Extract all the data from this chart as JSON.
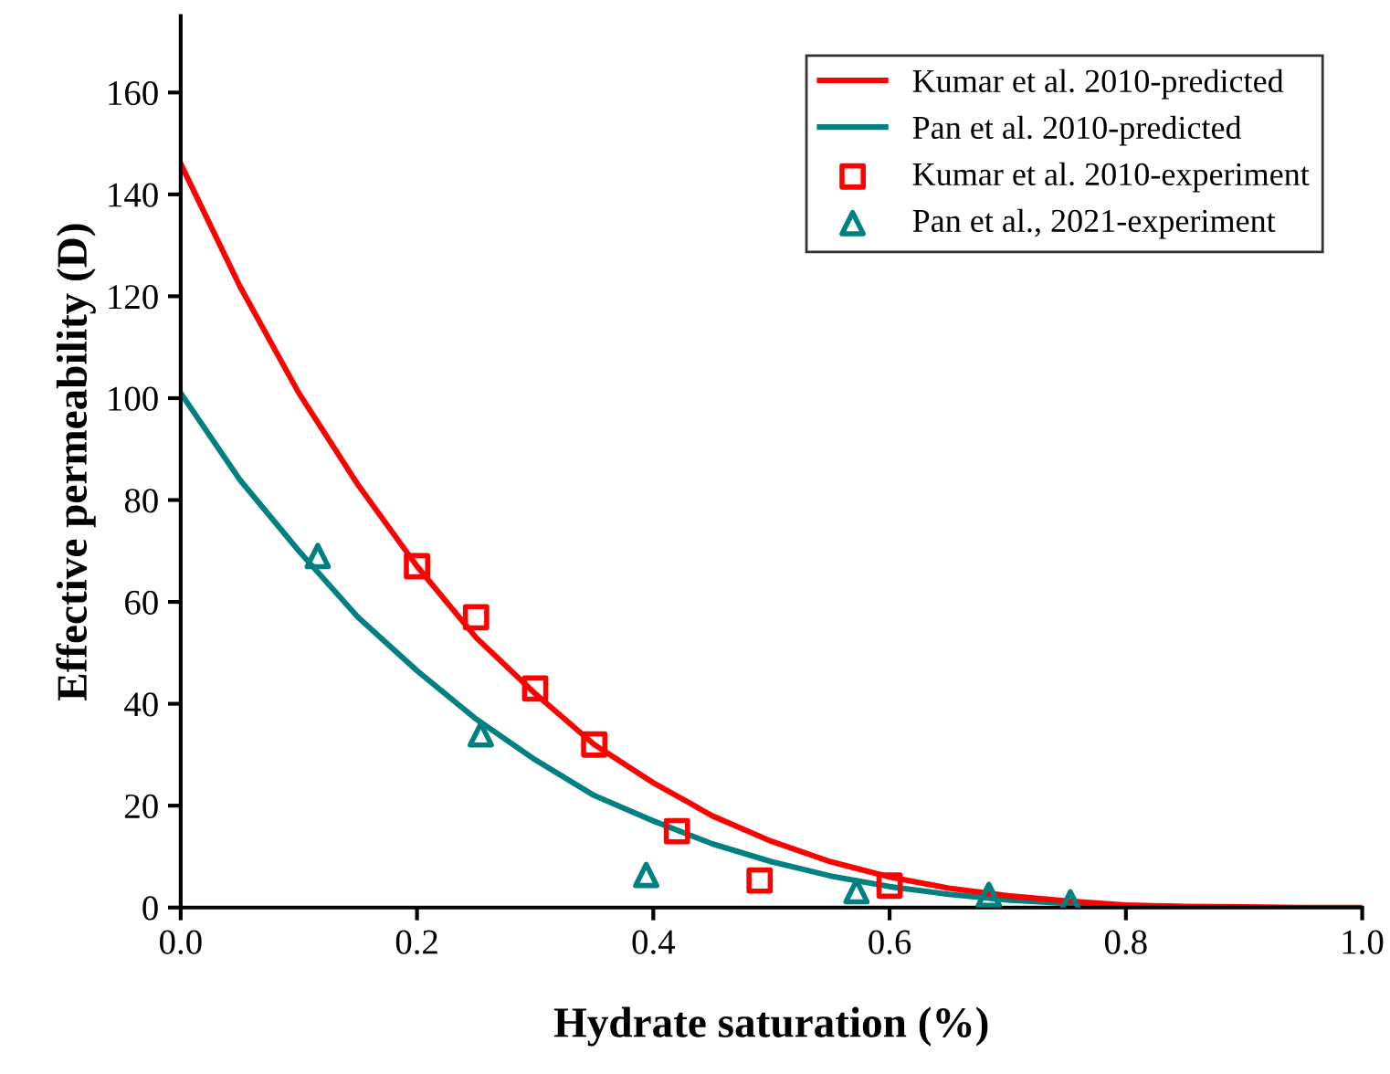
{
  "chart_data": {
    "type": "line",
    "xlabel": "Hydrate saturation (%)",
    "ylabel": "Effective permeability (D)",
    "xlim": [
      0,
      1.0
    ],
    "xticks": [
      {
        "value": 0,
        "label": "0.0"
      },
      0.2,
      0.4,
      0.6,
      0.8,
      {
        "value": 1,
        "label": "1.0"
      }
    ],
    "ylim": [
      0,
      175
    ],
    "yticks": [
      0,
      20,
      40,
      60,
      80,
      100,
      120,
      140,
      160
    ],
    "grid": false,
    "legend": "top right",
    "series": [
      {
        "name": "Kumar et al. 2010-predicted",
        "color": "#ff0000",
        "line_style": "solid",
        "marker": "none",
        "x": [
          0,
          0.05,
          0.1,
          0.15,
          0.2,
          0.25,
          0.3,
          0.35,
          0.4,
          0.45,
          0.5,
          0.55,
          0.6,
          0.65,
          0.7,
          0.75,
          0.8,
          0.85,
          0.9,
          0.95,
          1.0
        ],
        "values": [
          146,
          122,
          101,
          83,
          67,
          53,
          42,
          32,
          24.5,
          18,
          13,
          9,
          6,
          3.8,
          2.3,
          1.3,
          0.5,
          0.2,
          0.1,
          0,
          0
        ]
      },
      {
        "name": "Pan et al. 2010-predicted",
        "color": "#008080",
        "line_style": "solid",
        "marker": "none",
        "x": [
          0,
          0.05,
          0.1,
          0.15,
          0.2,
          0.25,
          0.3,
          0.35,
          0.4,
          0.45,
          0.5,
          0.55,
          0.6,
          0.65,
          0.7,
          0.75,
          0.8,
          0.85
        ],
        "values": [
          101,
          84,
          70,
          57,
          46.5,
          37,
          29,
          22,
          17,
          12.5,
          9,
          6.2,
          4.1,
          2.6,
          1.5,
          0.8,
          0.4,
          0.1
        ]
      },
      {
        "name": "Kumar et al. 2010-experiment",
        "type": "scatter",
        "color": "#ff0000",
        "marker": "square",
        "x": [
          0.2,
          0.25,
          0.3,
          0.35,
          0.42,
          0.49,
          0.6
        ],
        "values": [
          67,
          57,
          43,
          32,
          15,
          5.3,
          4.3
        ]
      },
      {
        "name": "Pan et al., 2021-experiment",
        "type": "scatter",
        "color": "#008080",
        "marker": "triangle",
        "x": [
          0.116,
          0.254,
          0.394,
          0.572,
          0.684,
          0.753
        ],
        "values": [
          69,
          34,
          6.4,
          3.2,
          2.5,
          1
        ]
      }
    ]
  }
}
